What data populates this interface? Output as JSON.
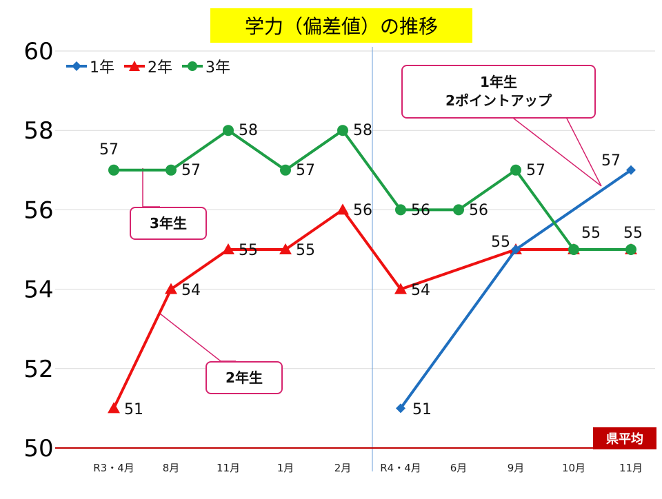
{
  "title": "学力（偏差値）の推移",
  "reference_label": "県平均",
  "callouts": {
    "grade1": [
      "1年生",
      "2ポイントアップ"
    ],
    "grade2": "2年生",
    "grade3": "3年生"
  },
  "colors": {
    "grade1": "#1f6fbf",
    "grade2": "#ee1111",
    "grade3": "#1e9e46",
    "reference": "#c00000",
    "callout_border": "#d6246e",
    "title_bg": "#ffff00"
  },
  "chart_data": {
    "type": "line",
    "categories": [
      "R3・4月",
      "8月",
      "11月",
      "1月",
      "2月",
      "R4・4月",
      "6月",
      "9月",
      "10月",
      "11月"
    ],
    "ylim": [
      50,
      60
    ],
    "yticks": [
      50,
      52,
      54,
      56,
      58,
      60
    ],
    "grid": true,
    "legend_position": "top-left",
    "series": [
      {
        "name": "1年",
        "marker": "diamond",
        "values": [
          null,
          null,
          null,
          null,
          null,
          51,
          null,
          55,
          null,
          57
        ]
      },
      {
        "name": "2年",
        "marker": "triangle",
        "values": [
          51,
          54,
          55,
          55,
          56,
          54,
          null,
          55,
          55,
          55
        ]
      },
      {
        "name": "3年",
        "marker": "circle",
        "values": [
          57,
          57,
          58,
          57,
          58,
          56,
          56,
          57,
          55,
          55
        ]
      }
    ]
  }
}
